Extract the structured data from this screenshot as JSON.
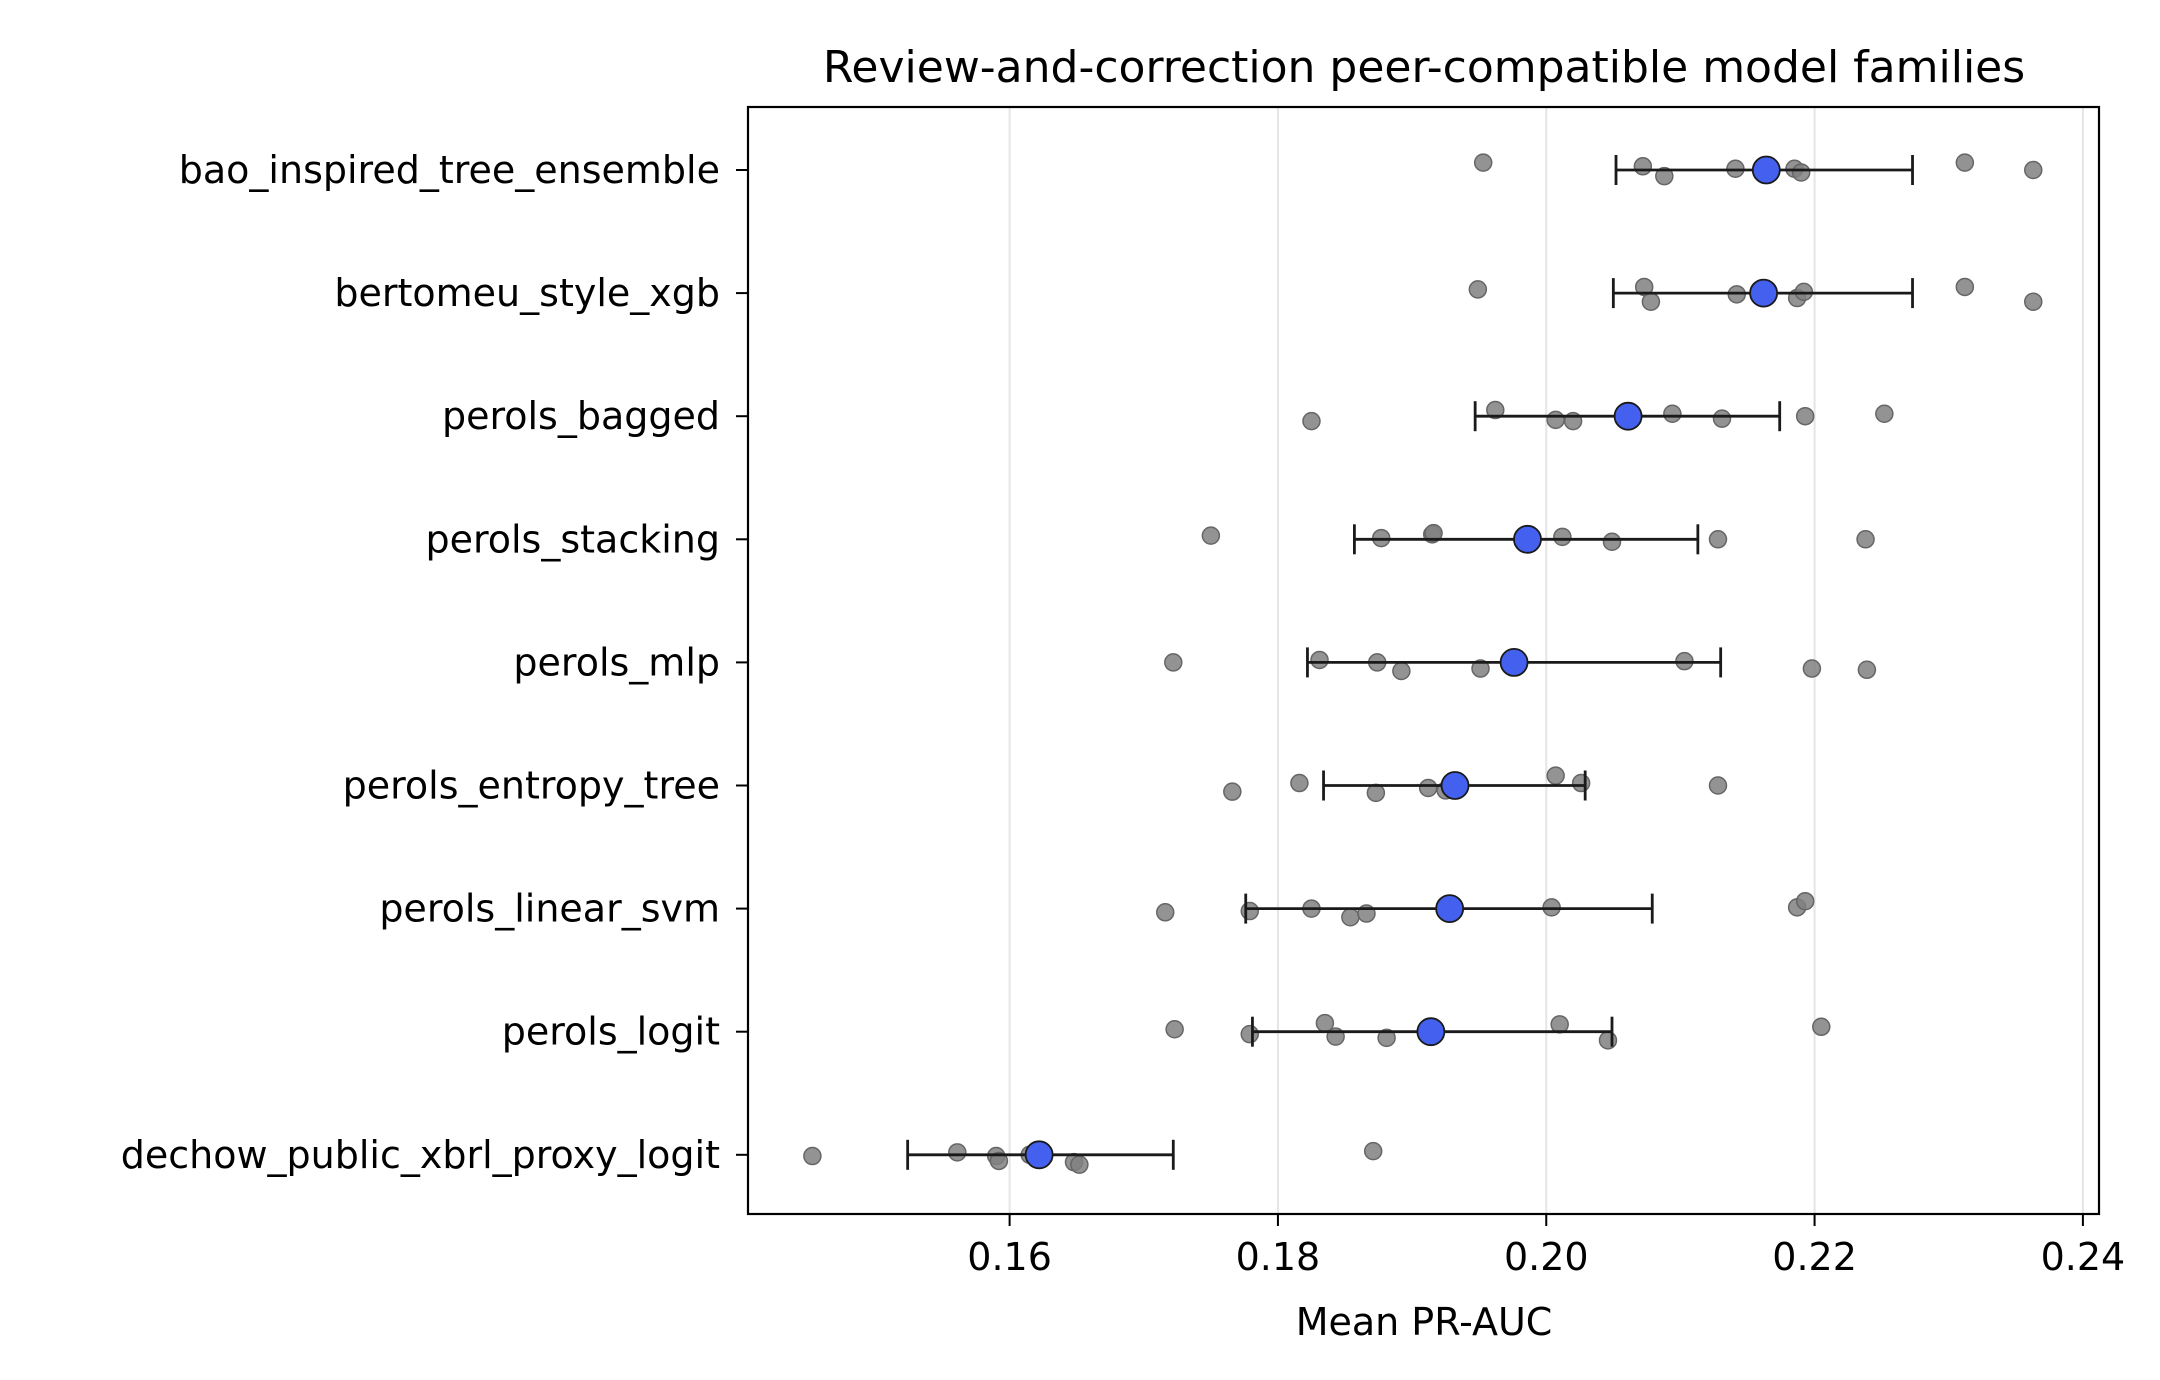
{
  "chart_data": {
    "type": "scatter",
    "title": "Review-and-correction peer-compatible model families",
    "xlabel": "Mean PR-AUC",
    "ylabel": "",
    "xlim": [
      0.1405,
      0.2412
    ],
    "xticks": [
      "0.16",
      "0.18",
      "0.20",
      "0.22",
      "0.24"
    ],
    "xtick_values": [
      0.16,
      0.18,
      0.2,
      0.22,
      0.24
    ],
    "grid": "vertical",
    "colors": {
      "mean": "#4361ee",
      "mean_edge": "#1a1a1a",
      "point": "#808080",
      "point_edge": "#666666",
      "errorbar": "#1a1a1a",
      "grid": "#e5e5e5"
    },
    "categories": [
      "bao_inspired_tree_ensemble",
      "bertomeu_style_xgb",
      "perols_bagged",
      "perols_stacking",
      "perols_mlp",
      "perols_entropy_tree",
      "perols_linear_svm",
      "perols_logit",
      "dechow_public_xbrl_proxy_logit"
    ],
    "means": [
      0.2164,
      0.2162,
      0.2061,
      0.1986,
      0.1976,
      0.1932,
      0.1928,
      0.1914,
      0.1622
    ],
    "ci_low": [
      0.2052,
      0.205,
      0.1947,
      0.1857,
      0.1822,
      0.1834,
      0.1776,
      0.1781,
      0.1524
    ],
    "ci_high": [
      0.2273,
      0.2273,
      0.2174,
      0.2113,
      0.213,
      0.2029,
      0.2079,
      0.2049,
      0.1722
    ],
    "points": [
      [
        0.1953,
        0.2072,
        0.2088,
        0.2141,
        0.2185,
        0.219,
        0.2312,
        0.2363
      ],
      [
        0.1949,
        0.2073,
        0.2078,
        0.2142,
        0.2187,
        0.2192,
        0.2312,
        0.2363
      ],
      [
        0.1825,
        0.1962,
        0.2007,
        0.202,
        0.2094,
        0.2131,
        0.2193,
        0.2252
      ],
      [
        0.175,
        0.1877,
        0.1915,
        0.1916,
        0.2012,
        0.2049,
        0.2128,
        0.2238
      ],
      [
        0.1722,
        0.1831,
        0.1874,
        0.1892,
        0.1951,
        0.2103,
        0.2198,
        0.2239
      ],
      [
        0.1766,
        0.1816,
        0.1873,
        0.1912,
        0.1925,
        0.2007,
        0.2026,
        0.2128
      ],
      [
        0.1716,
        0.1779,
        0.1825,
        0.1854,
        0.1866,
        0.2004,
        0.2187,
        0.2193
      ],
      [
        0.1723,
        0.1779,
        0.1835,
        0.1843,
        0.1881,
        0.201,
        0.2046,
        0.2205
      ],
      [
        0.1453,
        0.1561,
        0.159,
        0.1592,
        0.1615,
        0.1648,
        0.1652,
        0.1871
      ]
    ],
    "jitter": [
      [
        -0.06,
        -0.03,
        0.05,
        -0.01,
        -0.01,
        0.02,
        -0.06,
        0.0
      ],
      [
        -0.03,
        -0.05,
        0.07,
        0.01,
        0.04,
        -0.01,
        -0.05,
        0.07
      ],
      [
        0.04,
        -0.05,
        0.03,
        0.04,
        -0.02,
        0.02,
        0.0,
        -0.02
      ],
      [
        -0.03,
        -0.01,
        -0.04,
        -0.05,
        -0.02,
        0.02,
        0.0,
        0.0
      ],
      [
        0.0,
        -0.02,
        0.0,
        0.07,
        0.05,
        -0.01,
        0.05,
        0.06
      ],
      [
        0.05,
        -0.02,
        0.06,
        0.02,
        0.04,
        -0.08,
        -0.02,
        0.0
      ],
      [
        0.03,
        0.02,
        0.0,
        0.07,
        0.04,
        -0.01,
        -0.01,
        -0.06
      ],
      [
        -0.02,
        0.02,
        -0.07,
        0.04,
        0.05,
        -0.06,
        0.07,
        -0.04
      ],
      [
        0.01,
        -0.02,
        0.01,
        0.05,
        0.0,
        0.06,
        0.08,
        -0.03
      ]
    ]
  }
}
